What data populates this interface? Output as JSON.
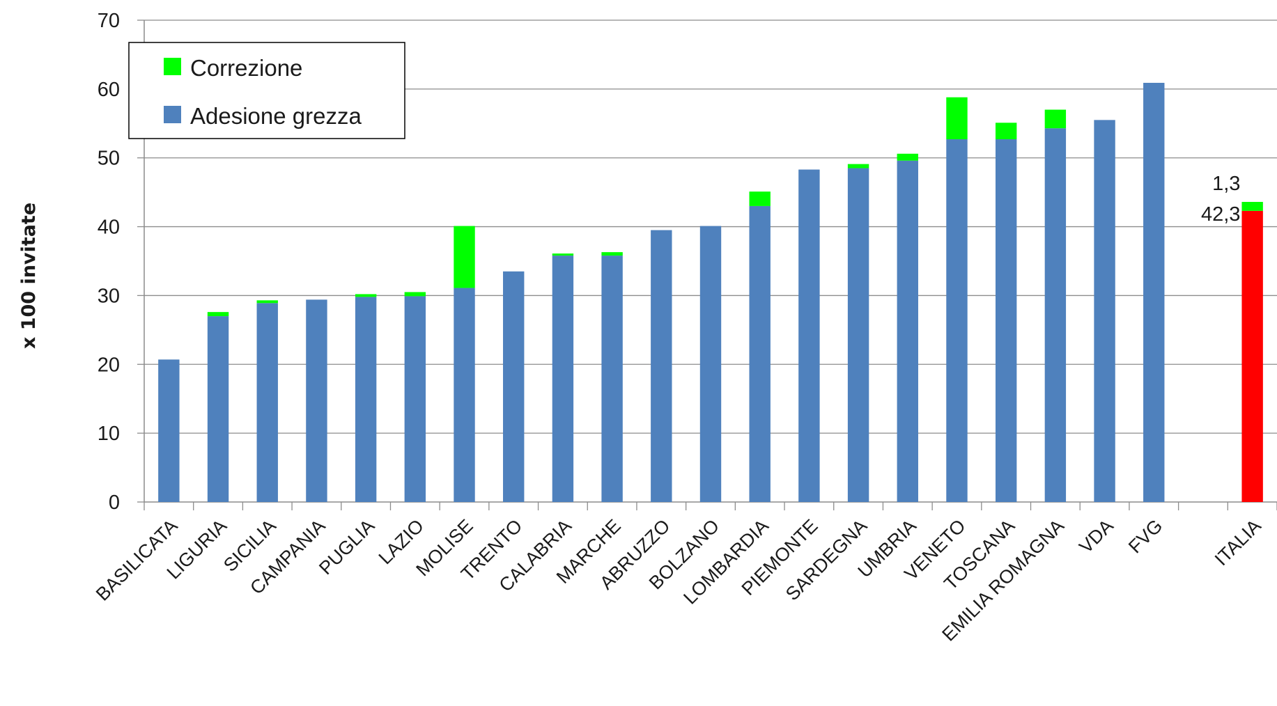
{
  "chart_data": {
    "type": "bar",
    "stacked": true,
    "ylabel": "x 100 invitate",
    "ylim": [
      0,
      70
    ],
    "yticks": [
      0,
      10,
      20,
      30,
      40,
      50,
      60,
      70
    ],
    "grid": true,
    "legend_position": "top-left",
    "categories": [
      "BASILICATA",
      "LIGURIA",
      "SICILIA",
      "CAMPANIA",
      "PUGLIA",
      "LAZIO",
      "MOLISE",
      "TRENTO",
      "CALABRIA",
      "MARCHE",
      "ABRUZZO",
      "BOLZANO",
      "LOMBARDIA",
      "PIEMONTE",
      "SARDEGNA",
      "UMBRIA",
      "VENETO",
      "TOSCANA",
      "EMILIA ROMAGNA",
      "VDA",
      "FVG",
      "",
      "ITALIA"
    ],
    "series": [
      {
        "name": "Adesione grezza",
        "color": "#4F81BD",
        "values": [
          20.7,
          27.0,
          28.9,
          29.4,
          29.8,
          29.9,
          31.1,
          33.5,
          35.8,
          35.8,
          39.5,
          40.1,
          43.0,
          48.3,
          48.5,
          49.6,
          52.7,
          52.7,
          54.3,
          55.5,
          60.9,
          null,
          42.3
        ]
      },
      {
        "name": "Correzione",
        "color": "#00FF00",
        "values": [
          0,
          0.6,
          0.4,
          0,
          0.4,
          0.6,
          9.0,
          0,
          0.3,
          0.5,
          0,
          0,
          2.1,
          0,
          0.6,
          1.0,
          6.1,
          2.4,
          2.7,
          0,
          0,
          null,
          1.3
        ]
      }
    ],
    "highlight": {
      "category": "ITALIA",
      "base_color": "#FF0000"
    },
    "annotations": [
      {
        "category": "ITALIA",
        "series": "Correzione",
        "text": "1,3"
      },
      {
        "category": "ITALIA",
        "series": "Adesione grezza",
        "text": "42,3"
      }
    ]
  }
}
